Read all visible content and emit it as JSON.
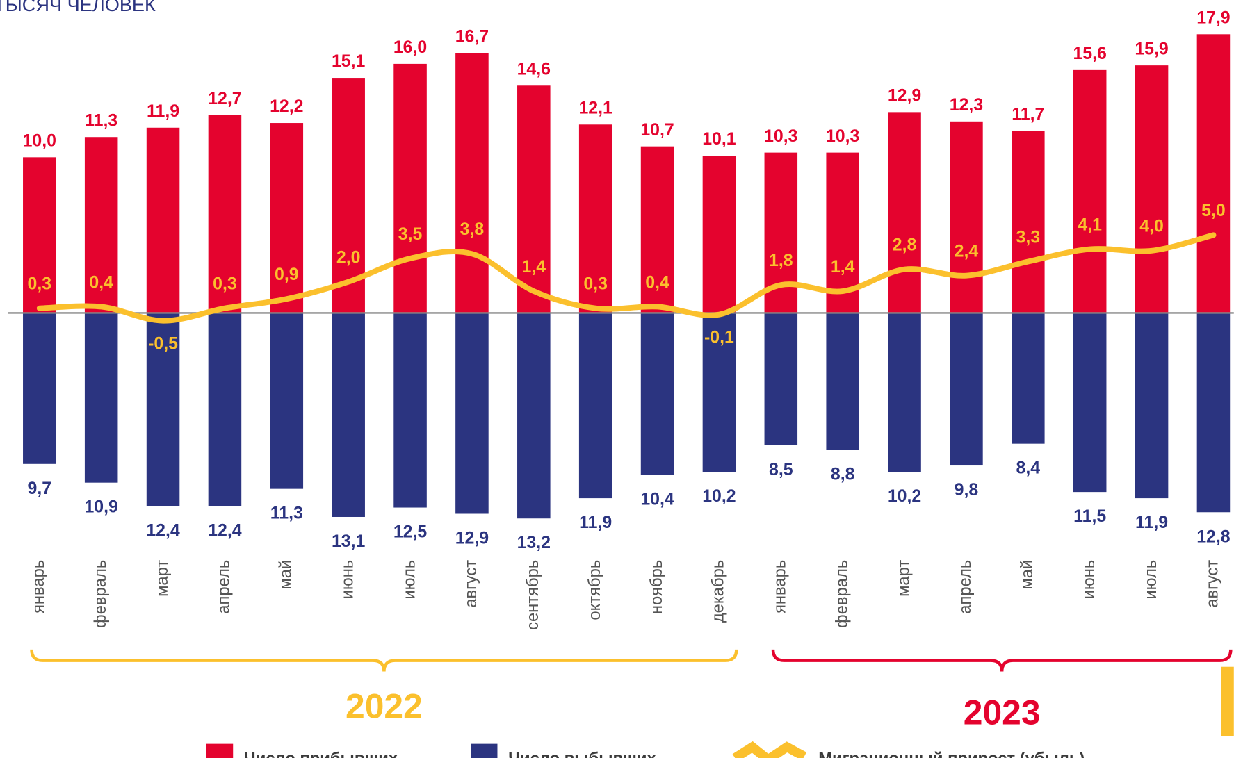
{
  "chart_data": {
    "type": "bar",
    "title": "ТЫСЯЧ ЧЕЛОВЕК",
    "ylim": [
      -20,
      20
    ],
    "category_groups": [
      {
        "label": "2022",
        "color": "#fbc02d",
        "categories": [
          "январь",
          "февраль",
          "март",
          "апрель",
          "май",
          "июнь",
          "июль",
          "август",
          "сентябрь",
          "октябрь",
          "ноябрь",
          "декабрь"
        ]
      },
      {
        "label": "2023",
        "color": "#e4032e",
        "categories": [
          "январь",
          "февраль",
          "март",
          "апрель",
          "май",
          "июнь",
          "июль",
          "август"
        ]
      }
    ],
    "series": [
      {
        "name": "Число прибывших",
        "type": "bar",
        "color": "#e4032e",
        "values": [
          10.0,
          11.3,
          11.9,
          12.7,
          12.2,
          15.1,
          16.0,
          16.7,
          14.6,
          12.1,
          10.7,
          10.1,
          10.3,
          10.3,
          12.9,
          12.3,
          11.7,
          15.6,
          15.9,
          17.9
        ],
        "value_labels": [
          "10,0",
          "11,3",
          "11,9",
          "12,7",
          "12,2",
          "15,1",
          "16,0",
          "16,7",
          "14,6",
          "12,1",
          "10,7",
          "10,1",
          "10,3",
          "10,3",
          "12,9",
          "12,3",
          "11,7",
          "15,6",
          "15,9",
          "17,9"
        ]
      },
      {
        "name": "Число выбывших",
        "type": "bar",
        "direction": "down",
        "color": "#2b3480",
        "values": [
          9.7,
          10.9,
          12.4,
          12.4,
          11.3,
          13.1,
          12.5,
          12.9,
          13.2,
          11.9,
          10.4,
          10.2,
          8.5,
          8.8,
          10.2,
          9.8,
          8.4,
          11.5,
          11.9,
          12.8
        ],
        "value_labels": [
          "9,7",
          "10,9",
          "12,4",
          "12,4",
          "11,3",
          "13,1",
          "12,5",
          "12,9",
          "13,2",
          "11,9",
          "10,4",
          "10,2",
          "8,5",
          "8,8",
          "10,2",
          "9,8",
          "8,4",
          "11,5",
          "11,9",
          "12,8"
        ]
      },
      {
        "name": "Миграционный прирост (убыль)",
        "type": "line",
        "color": "#fbc02d",
        "values": [
          0.3,
          0.4,
          -0.5,
          0.3,
          0.9,
          2.0,
          3.5,
          3.8,
          1.4,
          0.3,
          0.4,
          -0.1,
          1.8,
          1.4,
          2.8,
          2.4,
          3.3,
          4.1,
          4.0,
          5.0
        ],
        "value_labels": [
          "0,3",
          "0,4",
          "-0,5",
          "0,3",
          "0,9",
          "2,0",
          "3,5",
          "3,8",
          "1,4",
          "0,3",
          "0,4",
          "-0,1",
          "1,8",
          "1,4",
          "2,8",
          "2,4",
          "3,3",
          "4,1",
          "4,0",
          "5,0"
        ]
      }
    ]
  }
}
